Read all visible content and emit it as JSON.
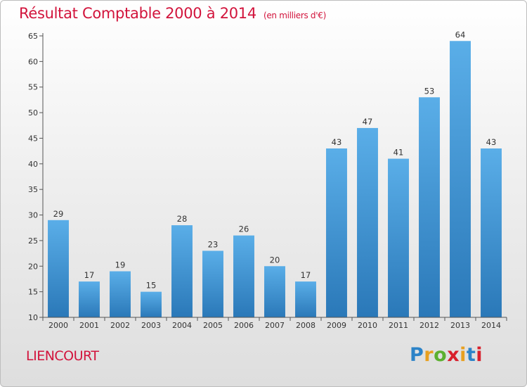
{
  "header": {
    "title": "Résultat Comptable 2000 à 2014",
    "subtitle": "(en milliers d'€)"
  },
  "footer": {
    "commune": "LIENCOURT",
    "brand_letters": [
      "P",
      "r",
      "o",
      "x",
      "i",
      "t",
      "i"
    ],
    "brand_colors": [
      "#2c83c8",
      "#e8a020",
      "#5cb030",
      "#d8202c",
      "#e8a020",
      "#2c83c8",
      "#d8202c"
    ]
  },
  "chart_data": {
    "type": "bar",
    "title": "Résultat Comptable 2000 à 2014",
    "subtitle": "(en milliers d'€)",
    "categories": [
      "2000",
      "2001",
      "2002",
      "2003",
      "2004",
      "2005",
      "2006",
      "2007",
      "2008",
      "2009",
      "2010",
      "2011",
      "2012",
      "2013",
      "2014"
    ],
    "values": [
      29,
      17,
      19,
      15,
      28,
      23,
      26,
      20,
      17,
      43,
      47,
      41,
      53,
      64,
      43
    ],
    "ylim": [
      10,
      65
    ],
    "yticks": [
      10,
      15,
      20,
      25,
      30,
      35,
      40,
      45,
      50,
      55,
      60,
      65
    ],
    "grid": false,
    "bar_color_top": "#5aaee8",
    "bar_color_bottom": "#2a78b8"
  }
}
